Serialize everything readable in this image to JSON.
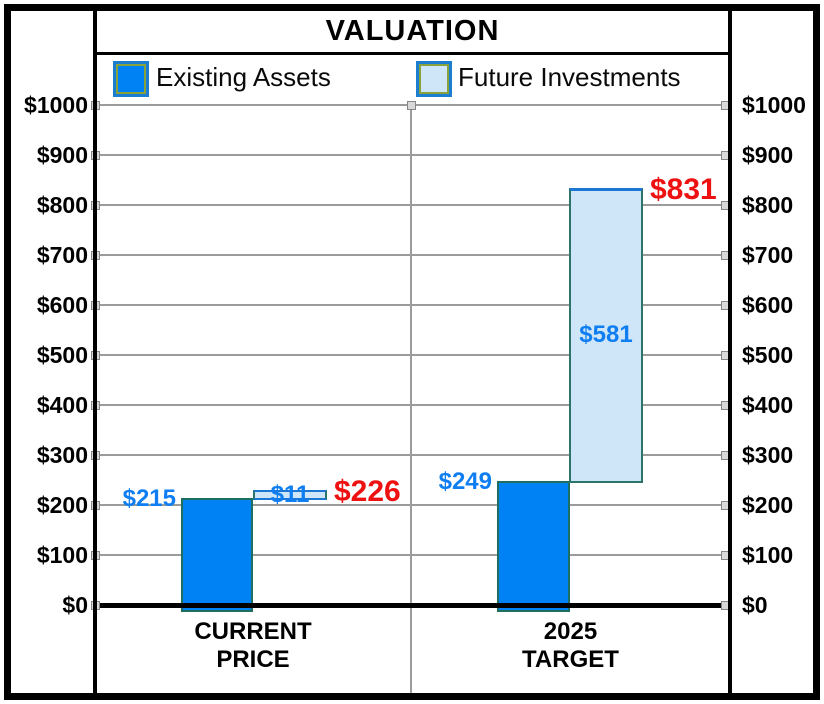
{
  "title": "VALUATION",
  "legend": {
    "items": [
      {
        "label": "Existing Assets",
        "color": "#0082f5"
      },
      {
        "label": "Future Investments",
        "color": "#cfe5f8"
      }
    ]
  },
  "y_axis": {
    "ticks": [
      {
        "value": 1000,
        "label": "$1000"
      },
      {
        "value": 900,
        "label": "$900"
      },
      {
        "value": 800,
        "label": "$800"
      },
      {
        "value": 700,
        "label": "$700"
      },
      {
        "value": 600,
        "label": "$600"
      },
      {
        "value": 500,
        "label": "$500"
      },
      {
        "value": 400,
        "label": "$400"
      },
      {
        "value": 300,
        "label": "$300"
      },
      {
        "value": 200,
        "label": "$200"
      },
      {
        "value": 100,
        "label": "$100"
      },
      {
        "value": 0,
        "label": "$0"
      }
    ]
  },
  "categories": [
    {
      "label": "CURRENT PRICE",
      "line1": "CURRENT",
      "line2": "PRICE"
    },
    {
      "label": "2025 TARGET",
      "line1": "2025",
      "line2": "TARGET"
    }
  ],
  "chart_data": {
    "type": "bar",
    "subtype": "stacked-waterfall",
    "title": "VALUATION",
    "categories": [
      "CURRENT PRICE",
      "2025 TARGET"
    ],
    "series": [
      {
        "name": "Existing Assets",
        "values": [
          215,
          249
        ],
        "labels": [
          "$215",
          "$249"
        ],
        "color": "#0082f5"
      },
      {
        "name": "Future Investments",
        "values": [
          11,
          581
        ],
        "labels": [
          "$11",
          "$581"
        ],
        "color": "#cfe5f8"
      }
    ],
    "totals": {
      "values": [
        226,
        831
      ],
      "labels": [
        "$226",
        "$831"
      ]
    },
    "ylim": [
      0,
      1000
    ],
    "ytick_step": 100,
    "grid": true,
    "legend_position": "top"
  },
  "colors": {
    "existing_fill": "#0082f5",
    "future_fill": "#cfe5f8",
    "series_label_blue": "#0e7ef2",
    "total_label_red": "#ee1111",
    "gridline_gray": "#9b9b9b",
    "frame_black": "#000000"
  }
}
